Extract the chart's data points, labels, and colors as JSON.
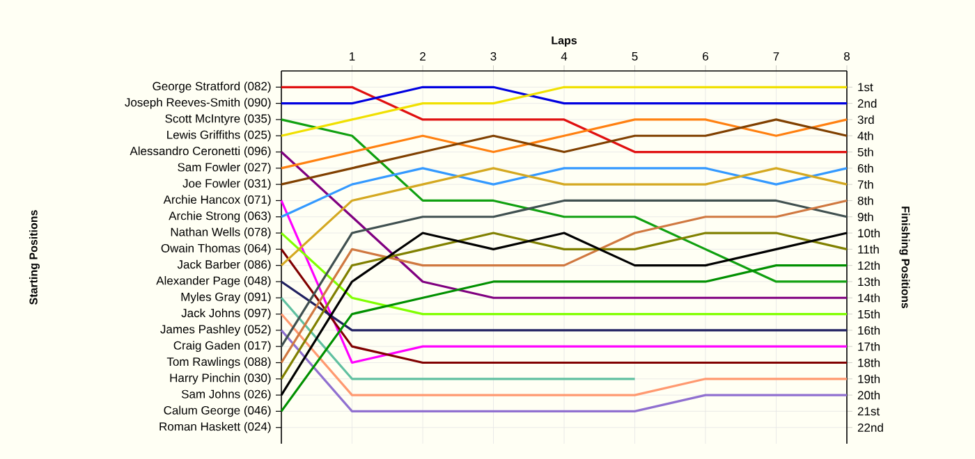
{
  "chart_data": {
    "type": "line",
    "xlabel": "Laps",
    "ylabel": "Finishing Positions",
    "grid": true,
    "marker": "none",
    "line_style": "solid",
    "x": [
      0,
      1,
      2,
      3,
      4,
      5,
      6,
      7,
      8
    ],
    "xlim": [
      0,
      8
    ],
    "xticks": [
      1,
      2,
      3,
      4,
      5,
      6,
      7,
      8
    ],
    "ylim": [
      23,
      0
    ],
    "yticks": [
      {
        "value": 1,
        "label": "1st"
      },
      {
        "value": 2,
        "label": "2nd"
      },
      {
        "value": 3,
        "label": "3rd"
      },
      {
        "value": 4,
        "label": "4th"
      },
      {
        "value": 5,
        "label": "5th"
      },
      {
        "value": 6,
        "label": "6th"
      },
      {
        "value": 7,
        "label": "7th"
      },
      {
        "value": 8,
        "label": "8th"
      },
      {
        "value": 9,
        "label": "9th"
      },
      {
        "value": 10,
        "label": "10th"
      },
      {
        "value": 11,
        "label": "11th"
      },
      {
        "value": 12,
        "label": "12th"
      },
      {
        "value": 13,
        "label": "13th"
      },
      {
        "value": 14,
        "label": "14th"
      },
      {
        "value": 15,
        "label": "15th"
      },
      {
        "value": 16,
        "label": "16th"
      },
      {
        "value": 17,
        "label": "17th"
      },
      {
        "value": 18,
        "label": "18th"
      },
      {
        "value": 19,
        "label": "19th"
      },
      {
        "value": 20,
        "label": "20th"
      },
      {
        "value": 21,
        "label": "21st"
      },
      {
        "value": 22,
        "label": "22nd"
      }
    ],
    "annotations": [
      "Starting Positions",
      "George Stratford (082)",
      "Joseph Reeves-Smith (090)",
      "Scott McIntyre (035)",
      "Lewis Griffiths (025)",
      "Alessandro Ceronetti (096)",
      "Sam Fowler (027)",
      "Joe Fowler (031)",
      "Archie Hancox (071)",
      "Archie Strong (063)",
      "Nathan Wells (078)",
      "Owain Thomas (064)",
      "Jack Barber (086)",
      "Alexander Page (048)",
      "Myles Gray (091)",
      "Jack Johns (097)",
      "James Pashley (052)",
      "Craig Gaden (017)",
      "Tom Rawlings (088)",
      "Harry Pinchin (030)",
      "Sam Johns (026)",
      "Calum George (046)",
      "Roman Haskett (024)"
    ],
    "series": [
      {
        "color": "#e01010",
        "values": [
          1,
          1,
          3,
          3,
          3,
          5,
          5,
          5,
          5
        ]
      },
      {
        "color": "#0000e0",
        "values": [
          2,
          2,
          1,
          1,
          2,
          2,
          2,
          2,
          2
        ]
      },
      {
        "color": "#10a010",
        "values": [
          3,
          4,
          8,
          8,
          9,
          9,
          11,
          13,
          13
        ]
      },
      {
        "color": "#f0e000",
        "values": [
          4,
          3,
          2,
          2,
          1,
          1,
          1,
          1,
          1
        ]
      },
      {
        "color": "#800080",
        "values": [
          5,
          9,
          13,
          14,
          14,
          14,
          14,
          14,
          14
        ]
      },
      {
        "color": "#ff8010",
        "values": [
          6,
          5,
          4,
          5,
          4,
          3,
          3,
          4,
          3
        ]
      },
      {
        "color": "#804000",
        "values": [
          7,
          6,
          5,
          4,
          5,
          4,
          4,
          3,
          4
        ]
      },
      {
        "color": "#ff00ff",
        "values": [
          8,
          18,
          17,
          17,
          17,
          17,
          17,
          17,
          17
        ]
      },
      {
        "color": "#3399ff",
        "values": [
          9,
          7,
          6,
          7,
          6,
          6,
          6,
          7,
          6
        ]
      },
      {
        "color": "#80ff00",
        "values": [
          10,
          14,
          15,
          15,
          15,
          15,
          15,
          15,
          15
        ]
      },
      {
        "color": "#800000",
        "values": [
          11,
          17,
          18,
          18,
          18,
          18,
          18,
          18,
          18
        ]
      },
      {
        "color": "#d4a820",
        "values": [
          12,
          8,
          7,
          6,
          7,
          7,
          7,
          6,
          7
        ]
      },
      {
        "color": "#202060",
        "values": [
          13,
          16,
          16,
          16,
          16,
          16,
          16,
          16,
          16
        ]
      },
      {
        "color": "#60c0a0",
        "values": [
          14,
          19,
          19,
          19,
          19,
          19,
          null,
          null,
          null
        ]
      },
      {
        "color": "#ff9970",
        "values": [
          15,
          20,
          20,
          20,
          20,
          20,
          19,
          19,
          19
        ]
      },
      {
        "color": "#9070d0",
        "values": [
          16,
          21,
          21,
          21,
          21,
          21,
          20,
          20,
          20
        ]
      },
      {
        "color": "#405050",
        "values": [
          17,
          10,
          9,
          9,
          8,
          8,
          8,
          8,
          9
        ]
      },
      {
        "color": "#d07840",
        "values": [
          18,
          11,
          12,
          12,
          12,
          10,
          9,
          9,
          8
        ]
      },
      {
        "color": "#808000",
        "values": [
          19,
          12,
          11,
          10,
          11,
          11,
          10,
          10,
          11
        ]
      },
      {
        "color": "#000000",
        "values": [
          20,
          13,
          10,
          11,
          10,
          12,
          12,
          11,
          10
        ]
      },
      {
        "color": "#009000",
        "values": [
          21,
          15,
          14,
          13,
          13,
          13,
          13,
          12,
          12
        ]
      }
    ]
  }
}
